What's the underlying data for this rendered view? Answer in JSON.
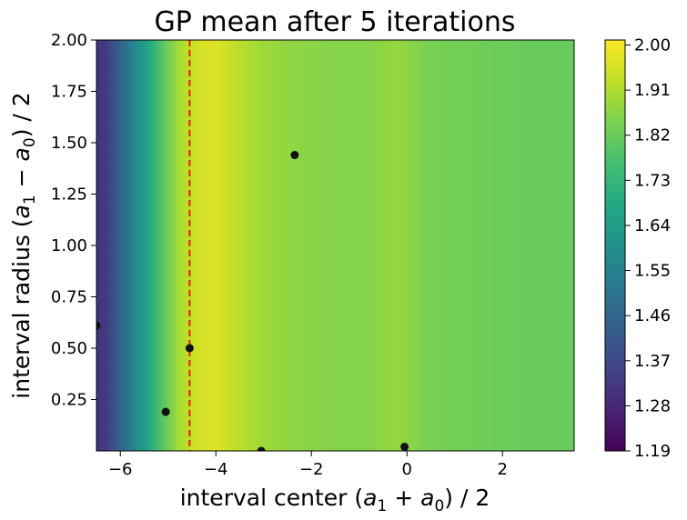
{
  "chart_data": {
    "type": "heatmap",
    "title": "GP mean after 5 iterations",
    "xlabel": {
      "prefix": "interval center (",
      "var1": "a",
      "sub1": "1",
      "op": " + ",
      "var2": "a",
      "sub2": "0",
      "suffix": ") / 2"
    },
    "ylabel": {
      "prefix": "interval radius (",
      "var1": "a",
      "sub1": "1",
      "op": " − ",
      "var2": "a",
      "sub2": "0",
      "suffix": ") / 2"
    },
    "xlim": [
      -6.5,
      3.5
    ],
    "ylim": [
      0.0,
      2.0
    ],
    "x_ticks": [
      {
        "value": -6,
        "label": "−6"
      },
      {
        "value": -4,
        "label": "−4"
      },
      {
        "value": -2,
        "label": "−2"
      },
      {
        "value": 0,
        "label": "0"
      },
      {
        "value": 2,
        "label": "2"
      }
    ],
    "y_ticks": [
      {
        "value": 0.25,
        "label": "0.25"
      },
      {
        "value": 0.5,
        "label": "0.50"
      },
      {
        "value": 0.75,
        "label": "0.75"
      },
      {
        "value": 1.0,
        "label": "1.00"
      },
      {
        "value": 1.25,
        "label": "1.25"
      },
      {
        "value": 1.5,
        "label": "1.50"
      },
      {
        "value": 1.75,
        "label": "1.75"
      },
      {
        "value": 2.0,
        "label": "2.00"
      }
    ],
    "colorbar": {
      "colormap": "viridis",
      "range": [
        1.19,
        2.01
      ],
      "ticks": [
        "1.19",
        "1.28",
        "1.37",
        "1.46",
        "1.55",
        "1.64",
        "1.73",
        "1.82",
        "1.91",
        "2.00"
      ],
      "tick_values": [
        1.19,
        1.28,
        1.37,
        1.46,
        1.55,
        1.64,
        1.73,
        1.82,
        1.91,
        2.0
      ]
    },
    "heatmap_profile": {
      "x": [
        -6.5,
        -6.3,
        -6.0,
        -5.7,
        -5.4,
        -5.1,
        -4.8,
        -4.6,
        -4.3,
        -4.0,
        -3.6,
        -3.0,
        -2.3,
        -1.5,
        -0.8,
        -0.2,
        0.5,
        1.5,
        2.5,
        3.5
      ],
      "value": [
        1.31,
        1.33,
        1.45,
        1.57,
        1.68,
        1.8,
        1.89,
        1.93,
        1.96,
        1.97,
        1.93,
        1.89,
        1.87,
        1.86,
        1.86,
        1.88,
        1.84,
        1.83,
        1.82,
        1.82
      ]
    },
    "vertical_line": {
      "x": -4.55,
      "color": "#e41a1c",
      "style": "dashed"
    },
    "points": [
      {
        "x": -6.5,
        "y": 0.61
      },
      {
        "x": -5.05,
        "y": 0.19
      },
      {
        "x": -4.55,
        "y": 0.5
      },
      {
        "x": -3.05,
        "y": 0.0
      },
      {
        "x": -2.35,
        "y": 1.44
      },
      {
        "x": -0.05,
        "y": 0.02
      }
    ],
    "point_color": "#111111"
  }
}
